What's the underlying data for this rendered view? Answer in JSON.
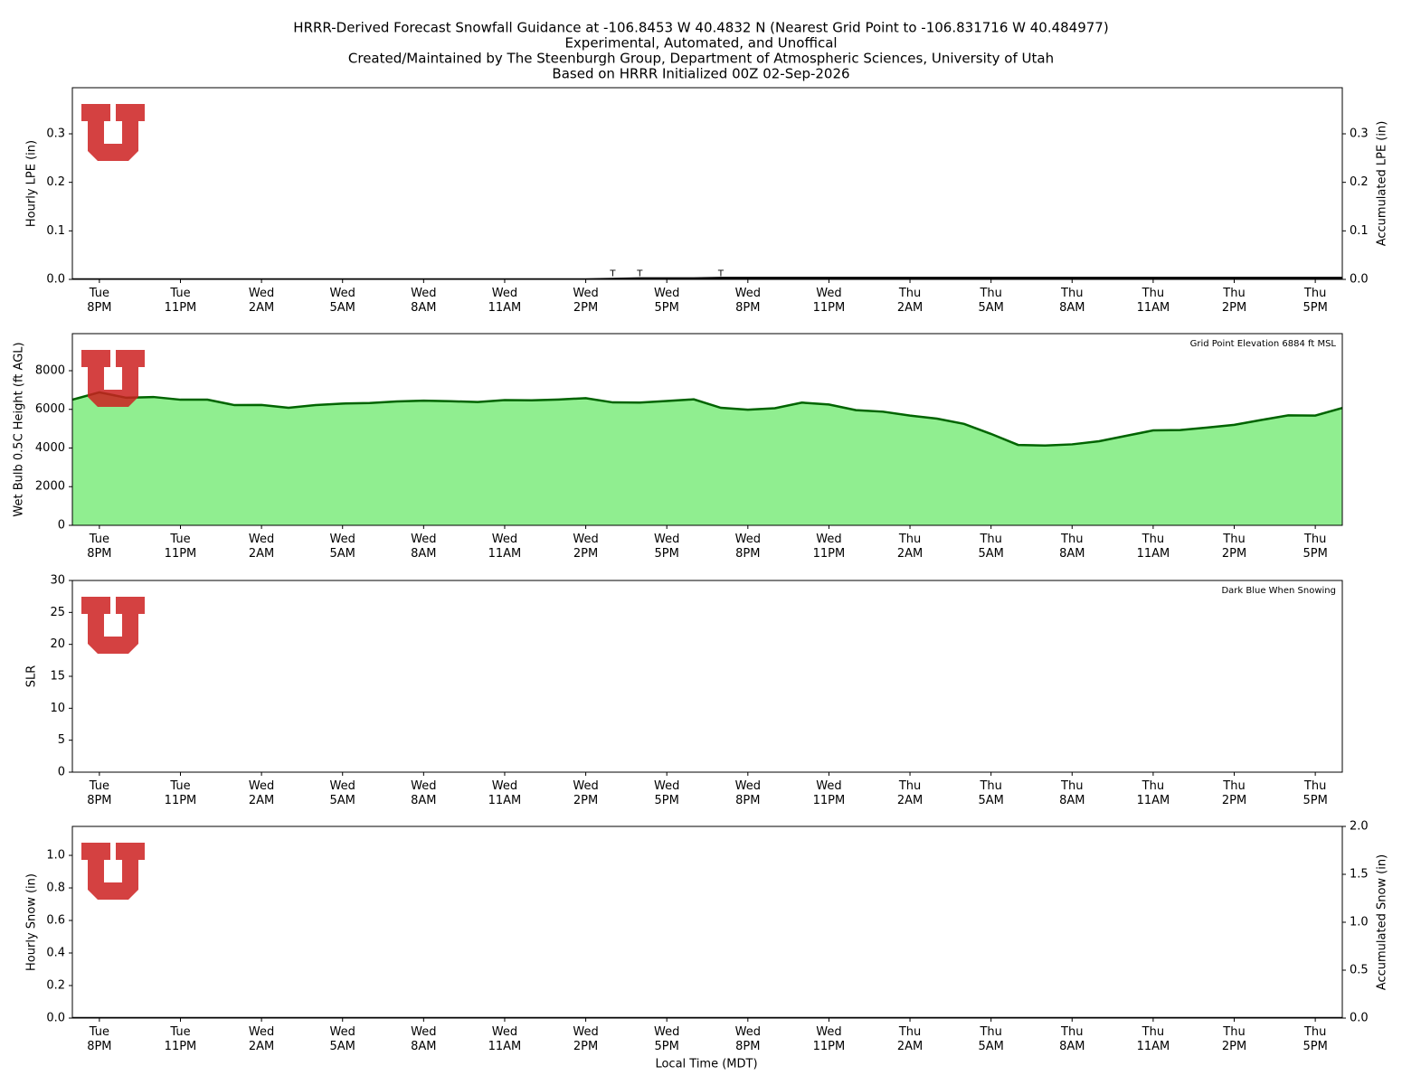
{
  "title": [
    "HRRR-Derived Forecast Snowfall Guidance at -106.8453 W 40.4832 N (Nearest Grid Point to -106.831716 W 40.484977)",
    "Experimental, Automated, and Unoffical",
    "Created/Maintained by The Steenburgh Group, Department of Atmospheric Sciences, University of Utah",
    "Based on HRRR Initialized 00Z 02-Sep-2026"
  ],
  "time_axis": {
    "xlabel": "Local Time (MDT)",
    "xlim": [
      0,
      47
    ],
    "x": [
      0,
      1,
      2,
      3,
      4,
      5,
      6,
      7,
      8,
      9,
      10,
      11,
      12,
      13,
      14,
      15,
      16,
      17,
      18,
      19,
      20,
      21,
      22,
      23,
      24,
      25,
      26,
      27,
      28,
      29,
      30,
      31,
      32,
      33,
      34,
      35,
      36,
      37,
      38,
      39,
      40,
      41,
      42,
      43,
      44,
      45,
      46,
      47
    ],
    "xticks": [
      {
        "value": 1,
        "label": "Tue\n8PM"
      },
      {
        "value": 4,
        "label": "Tue\n11PM"
      },
      {
        "value": 7,
        "label": "Wed\n2AM"
      },
      {
        "value": 10,
        "label": "Wed\n5AM"
      },
      {
        "value": 13,
        "label": "Wed\n8AM"
      },
      {
        "value": 16,
        "label": "Wed\n11AM"
      },
      {
        "value": 19,
        "label": "Wed\n2PM"
      },
      {
        "value": 22,
        "label": "Wed\n5PM"
      },
      {
        "value": 25,
        "label": "Wed\n8PM"
      },
      {
        "value": 28,
        "label": "Wed\n11PM"
      },
      {
        "value": 31,
        "label": "Thu\n2AM"
      },
      {
        "value": 34,
        "label": "Thu\n5AM"
      },
      {
        "value": 37,
        "label": "Thu\n8AM"
      },
      {
        "value": 40,
        "label": "Thu\n11AM"
      },
      {
        "value": 43,
        "label": "Thu\n2PM"
      },
      {
        "value": 46,
        "label": "Thu\n5PM"
      }
    ]
  },
  "chart_data": [
    {
      "type": "bar",
      "ylabel": "Hourly LPE (in)",
      "y2label": "Accumulated LPE (in)",
      "ylim": [
        0,
        0.395
      ],
      "yticks": [
        {
          "value": 0,
          "label": "0.0"
        },
        0.1,
        0.2,
        0.3
      ],
      "y2lim": [
        0,
        0.395
      ],
      "y2ticks": [
        {
          "value": 0,
          "label": "0.0"
        },
        0.1,
        0.2,
        0.3
      ],
      "series": [
        {
          "type": "bar",
          "color": "#3a5fcd",
          "values": [
            0,
            0,
            0,
            0,
            0,
            0,
            0,
            0,
            0,
            0,
            0,
            0,
            0,
            0,
            0,
            0,
            0,
            0,
            0,
            0,
            0.001,
            0.001,
            0,
            0,
            0.001,
            0,
            0,
            0,
            0,
            0,
            0,
            0,
            0,
            0,
            0,
            0,
            0,
            0,
            0,
            0,
            0,
            0,
            0,
            0,
            0,
            0,
            0,
            0
          ],
          "value_labels": [
            null,
            null,
            null,
            null,
            null,
            null,
            null,
            null,
            null,
            null,
            null,
            null,
            null,
            null,
            null,
            null,
            null,
            null,
            null,
            null,
            "T",
            "T",
            null,
            null,
            "T",
            null,
            null,
            null,
            null,
            null,
            null,
            null,
            null,
            null,
            null,
            null,
            null,
            null,
            null,
            null,
            null,
            null,
            null,
            null,
            null,
            null,
            null,
            null
          ]
        },
        {
          "type": "line",
          "axis": "y2",
          "color": "#000000",
          "values": [
            0,
            0,
            0,
            0,
            0,
            0,
            0,
            0,
            0,
            0,
            0,
            0,
            0,
            0,
            0,
            0,
            0,
            0,
            0,
            0,
            0.001,
            0.002,
            0.002,
            0.002,
            0.003,
            0.003,
            0.003,
            0.003,
            0.003,
            0.003,
            0.003,
            0.003,
            0.003,
            0.003,
            0.003,
            0.003,
            0.003,
            0.003,
            0.003,
            0.003,
            0.003,
            0.003,
            0.003,
            0.003,
            0.003,
            0.003,
            0.003,
            0.003
          ]
        }
      ]
    },
    {
      "type": "area",
      "ylabel": "Wet Bulb 0.5C Height (ft AGL)",
      "annotation": "Grid Point Elevation 6884 ft MSL",
      "ylim": [
        0,
        9918
      ],
      "yticks": [
        0,
        2000,
        4000,
        6000,
        8000
      ],
      "series": [
        {
          "type": "area",
          "color": "#006400",
          "fill": "#90ee90",
          "values": [
            6500,
            6880,
            6600,
            6640,
            6500,
            6500,
            6220,
            6230,
            6080,
            6220,
            6300,
            6330,
            6410,
            6450,
            6420,
            6380,
            6480,
            6470,
            6510,
            6580,
            6360,
            6350,
            6430,
            6520,
            6080,
            5980,
            6060,
            6350,
            6250,
            5960,
            5880,
            5680,
            5520,
            5250,
            4730,
            4160,
            4130,
            4190,
            4350,
            4630,
            4910,
            4930,
            5060,
            5200,
            5450,
            5690,
            5680,
            6070
          ]
        }
      ]
    },
    {
      "type": "line",
      "ylabel": "SLR",
      "annotation": "Dark Blue When Snowing",
      "ylim": [
        0,
        30
      ],
      "yticks": [
        0,
        5,
        10,
        15,
        20,
        25,
        30
      ],
      "series": []
    },
    {
      "type": "bar",
      "ylabel": "Hourly Snow (in)",
      "y2label": "Accumulated Snow (in)",
      "ylim": [
        0,
        1.178
      ],
      "yticks": [
        {
          "value": 0,
          "label": "0.0"
        },
        0.2,
        0.4,
        0.6,
        0.8,
        {
          "value": 1,
          "label": "1.0"
        }
      ],
      "y2lim": [
        0,
        2
      ],
      "y2ticks": [
        {
          "value": 0,
          "label": "0.0"
        },
        0.5,
        {
          "value": 1,
          "label": "1.0"
        },
        1.5,
        {
          "value": 2,
          "label": "2.0"
        }
      ],
      "series": [
        {
          "type": "bar",
          "color": "#00008b",
          "values": [
            0,
            0,
            0,
            0,
            0,
            0,
            0,
            0,
            0,
            0,
            0,
            0,
            0,
            0,
            0,
            0,
            0,
            0,
            0,
            0,
            0,
            0,
            0,
            0,
            0,
            0,
            0,
            0,
            0,
            0,
            0,
            0,
            0,
            0,
            0,
            0,
            0,
            0,
            0,
            0,
            0,
            0,
            0,
            0,
            0,
            0,
            0,
            0
          ]
        },
        {
          "type": "line",
          "axis": "y2",
          "color": "#000000",
          "values": [
            0,
            0,
            0,
            0,
            0,
            0,
            0,
            0,
            0,
            0,
            0,
            0,
            0,
            0,
            0,
            0,
            0,
            0,
            0,
            0,
            0,
            0,
            0,
            0,
            0,
            0,
            0,
            0,
            0,
            0,
            0,
            0,
            0,
            0,
            0,
            0,
            0,
            0,
            0,
            0,
            0,
            0,
            0,
            0,
            0,
            0,
            0,
            0
          ]
        }
      ]
    }
  ]
}
